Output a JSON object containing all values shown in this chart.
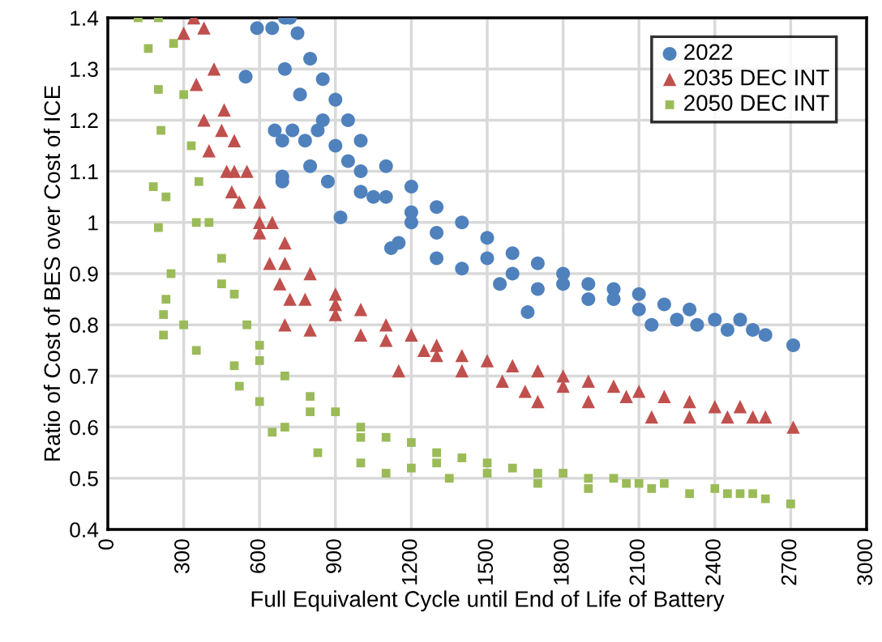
{
  "chart_data": {
    "type": "scatter",
    "xlabel": "Full Equivalent Cycle until End of Life of Battery",
    "ylabel": "Ratio of Cost of BES over Cost of ICE",
    "xlim": [
      0,
      3000
    ],
    "xticks": [
      0,
      300,
      600,
      900,
      1200,
      1500,
      1800,
      2100,
      2400,
      2700,
      3000
    ],
    "ylim": [
      0.4,
      1.4
    ],
    "yticks": [
      0.4,
      0.5,
      0.6,
      0.7,
      0.8,
      0.9,
      1,
      1.1,
      1.2,
      1.3,
      1.4
    ],
    "grid": true,
    "legend": "top right",
    "series": [
      {
        "name": "2022",
        "color": "#4f81bd",
        "marker": "circle",
        "x": [
          590,
          700,
          720,
          750,
          800,
          850,
          900,
          950,
          1000,
          1100,
          1200,
          1300,
          1400,
          1500,
          1600,
          1700,
          1800,
          1900,
          2000,
          2100,
          2200,
          2300,
          2400,
          2500,
          2600,
          2710,
          545,
          660,
          690,
          690,
          690,
          730,
          780,
          800,
          830,
          870,
          920,
          950,
          1000,
          1050,
          1120,
          1150,
          1200,
          1300,
          1400,
          1550,
          1660,
          1700,
          1900,
          2100,
          2150,
          2250,
          2330,
          2450,
          2550,
          650,
          700,
          760,
          850,
          900,
          1000,
          1100,
          1200,
          1300,
          1500,
          1600,
          1800,
          2000
        ],
        "values": [
          1.38,
          1.4,
          1.4,
          1.37,
          1.32,
          1.28,
          1.24,
          1.2,
          1.16,
          1.11,
          1.07,
          1.03,
          1.0,
          0.97,
          0.94,
          0.92,
          0.9,
          0.88,
          0.87,
          0.86,
          0.84,
          0.83,
          0.81,
          0.81,
          0.78,
          0.76,
          1.285,
          1.18,
          1.16,
          1.09,
          1.08,
          1.18,
          1.16,
          1.11,
          1.18,
          1.08,
          1.01,
          1.12,
          1.06,
          1.05,
          0.95,
          0.96,
          1.0,
          0.93,
          0.91,
          0.88,
          0.825,
          0.87,
          0.85,
          0.83,
          0.8,
          0.81,
          0.8,
          0.79,
          0.79,
          1.38,
          1.3,
          1.25,
          1.2,
          1.15,
          1.1,
          1.05,
          1.02,
          0.98,
          0.93,
          0.9,
          0.88,
          0.85
        ]
      },
      {
        "name": "2035 DEC INT",
        "color": "#c0504d",
        "marker": "triangle",
        "x": [
          340,
          380,
          420,
          460,
          500,
          550,
          600,
          650,
          700,
          800,
          900,
          1000,
          1100,
          1200,
          1300,
          1400,
          1500,
          1600,
          1700,
          1800,
          1900,
          2000,
          2100,
          2200,
          2300,
          2400,
          2500,
          2600,
          2710,
          300,
          350,
          380,
          400,
          450,
          470,
          490,
          520,
          600,
          640,
          680,
          700,
          720,
          780,
          800,
          900,
          1000,
          1150,
          1250,
          1400,
          1560,
          1650,
          1700,
          1800,
          1900,
          2050,
          2150,
          2300,
          2450,
          2550,
          500,
          600,
          700,
          900,
          1100,
          1300
        ],
        "values": [
          1.4,
          1.38,
          1.3,
          1.22,
          1.16,
          1.1,
          1.04,
          1.0,
          0.96,
          0.9,
          0.86,
          0.83,
          0.8,
          0.78,
          0.76,
          0.74,
          0.73,
          0.72,
          0.71,
          0.7,
          0.69,
          0.68,
          0.67,
          0.66,
          0.65,
          0.64,
          0.64,
          0.62,
          0.6,
          1.37,
          1.27,
          1.2,
          1.14,
          1.18,
          1.1,
          1.06,
          1.04,
          0.98,
          0.92,
          0.88,
          0.8,
          0.85,
          0.85,
          0.79,
          0.82,
          0.78,
          0.71,
          0.75,
          0.71,
          0.69,
          0.67,
          0.65,
          0.68,
          0.65,
          0.66,
          0.62,
          0.62,
          0.62,
          0.62,
          1.1,
          1.0,
          0.92,
          0.84,
          0.77,
          0.74
        ]
      },
      {
        "name": "2050 DEC INT",
        "color": "#9bbb59",
        "marker": "square",
        "x": [
          200,
          260,
          300,
          330,
          360,
          400,
          450,
          500,
          550,
          600,
          700,
          800,
          900,
          1000,
          1100,
          1200,
          1300,
          1400,
          1500,
          1600,
          1700,
          1800,
          1900,
          2000,
          2100,
          2200,
          2400,
          2500,
          2600,
          2700,
          120,
          160,
          200,
          210,
          180,
          230,
          200,
          250,
          230,
          220,
          220,
          300,
          350,
          500,
          520,
          600,
          700,
          650,
          830,
          1000,
          1100,
          1200,
          1350,
          1500,
          1700,
          1900,
          2050,
          2150,
          2300,
          2450,
          2550,
          350,
          450,
          600,
          800,
          1000,
          1300
        ],
        "values": [
          1.4,
          1.35,
          1.25,
          1.15,
          1.08,
          1.0,
          0.93,
          0.86,
          0.8,
          0.76,
          0.7,
          0.66,
          0.63,
          0.6,
          0.58,
          0.57,
          0.55,
          0.54,
          0.53,
          0.52,
          0.51,
          0.51,
          0.5,
          0.5,
          0.49,
          0.49,
          0.48,
          0.47,
          0.46,
          0.45,
          1.4,
          1.34,
          1.26,
          1.18,
          1.07,
          1.05,
          0.99,
          0.9,
          0.85,
          0.82,
          0.78,
          0.8,
          0.75,
          0.72,
          0.68,
          0.65,
          0.6,
          0.59,
          0.55,
          0.53,
          0.51,
          0.52,
          0.5,
          0.51,
          0.49,
          0.48,
          0.49,
          0.48,
          0.47,
          0.47,
          0.47,
          1.0,
          0.88,
          0.73,
          0.63,
          0.58,
          0.53
        ]
      }
    ]
  }
}
